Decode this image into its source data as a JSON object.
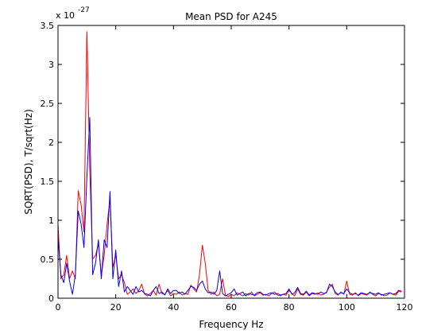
{
  "chart_data": {
    "type": "line",
    "title": "Mean PSD for A245",
    "xlabel": "Frequency Hz",
    "ylabel": "SQRT(PSD), T/sqrt(Hz)",
    "y_exponent_label": "x 10",
    "y_exponent_power": "-27",
    "xlim": [
      0,
      120
    ],
    "ylim": [
      0,
      3.5
    ],
    "x_ticks": [
      0,
      20,
      40,
      60,
      80,
      100,
      120
    ],
    "x_tick_labels": [
      "0",
      "20",
      "40",
      "60",
      "80",
      "100",
      "120"
    ],
    "y_ticks": [
      0,
      0.5,
      1,
      1.5,
      2,
      2.5,
      3,
      3.5
    ],
    "y_tick_labels": [
      "0",
      "0.5",
      "1",
      "1.5",
      "2",
      "2.5",
      "3",
      "3.5"
    ],
    "grid": false,
    "x_step": 1,
    "series": [
      {
        "color": "#ff0000",
        "values": [
          0.95,
          0.25,
          0.3,
          0.55,
          0.25,
          0.35,
          0.25,
          1.38,
          1.2,
          0.85,
          3.42,
          1.65,
          0.5,
          0.55,
          0.7,
          0.3,
          0.55,
          0.95,
          1.28,
          0.4,
          0.55,
          0.25,
          0.3,
          0.2,
          0.05,
          0.08,
          0.12,
          0.06,
          0.1,
          0.18,
          0.05,
          0.03,
          0.06,
          0.1,
          0.04,
          0.18,
          0.06,
          0.05,
          0.1,
          0.03,
          0.06,
          0.05,
          0.08,
          0.04,
          0.06,
          0.05,
          0.17,
          0.12,
          0.08,
          0.3,
          0.68,
          0.45,
          0.1,
          0.05,
          0.08,
          0.03,
          0.05,
          0.25,
          0.04,
          0.02,
          0.05,
          0.03,
          0.07,
          0.05,
          0.03,
          0.06,
          0.04,
          0.08,
          0.03,
          0.05,
          0.07,
          0.04,
          0.05,
          0.03,
          0.06,
          0.08,
          0.04,
          0.03,
          0.05,
          0.04,
          0.1,
          0.06,
          0.03,
          0.12,
          0.05,
          0.04,
          0.08,
          0.03,
          0.06,
          0.05,
          0.07,
          0.04,
          0.05,
          0.08,
          0.14,
          0.18,
          0.06,
          0.04,
          0.08,
          0.05,
          0.22,
          0.05,
          0.04,
          0.07,
          0.03,
          0.06,
          0.05,
          0.04,
          0.08,
          0.05,
          0.03,
          0.06,
          0.05,
          0.03,
          0.04,
          0.07,
          0.05,
          0.04,
          0.09,
          0.08
        ]
      },
      {
        "color": "#0000ff",
        "values": [
          0.78,
          0.3,
          0.2,
          0.45,
          0.22,
          0.05,
          0.3,
          1.12,
          0.95,
          0.65,
          1.55,
          2.32,
          0.3,
          0.45,
          0.75,
          0.25,
          0.75,
          0.65,
          1.37,
          0.25,
          0.62,
          0.15,
          0.35,
          0.08,
          0.15,
          0.1,
          0.05,
          0.15,
          0.08,
          0.1,
          0.06,
          0.05,
          0.03,
          0.1,
          0.15,
          0.06,
          0.08,
          0.04,
          0.12,
          0.06,
          0.1,
          0.1,
          0.06,
          0.08,
          0.05,
          0.1,
          0.15,
          0.14,
          0.1,
          0.18,
          0.22,
          0.12,
          0.07,
          0.08,
          0.05,
          0.1,
          0.35,
          0.06,
          0.03,
          0.05,
          0.07,
          0.12,
          0.04,
          0.06,
          0.08,
          0.03,
          0.06,
          0.05,
          0.04,
          0.07,
          0.08,
          0.05,
          0.04,
          0.06,
          0.07,
          0.05,
          0.06,
          0.04,
          0.05,
          0.06,
          0.12,
          0.05,
          0.07,
          0.14,
          0.06,
          0.05,
          0.09,
          0.04,
          0.07,
          0.06,
          0.05,
          0.08,
          0.06,
          0.07,
          0.18,
          0.15,
          0.08,
          0.05,
          0.07,
          0.06,
          0.12,
          0.07,
          0.05,
          0.06,
          0.04,
          0.07,
          0.06,
          0.05,
          0.07,
          0.06,
          0.05,
          0.07,
          0.04,
          0.05,
          0.06,
          0.07,
          0.05,
          0.06,
          0.1,
          0.09
        ]
      }
    ]
  }
}
